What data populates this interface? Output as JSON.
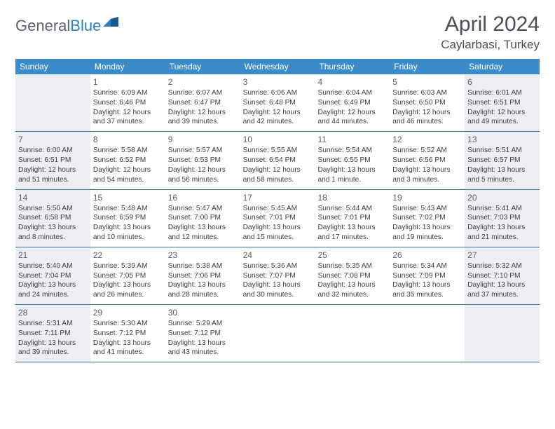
{
  "logo": {
    "part1": "General",
    "part2": "Blue"
  },
  "title": "April 2024",
  "location": "Caylarbasi, Turkey",
  "colors": {
    "header_bg": "#3b8bc9",
    "header_text": "#ffffff",
    "border": "#3b6fa0",
    "shaded": "#eceff1",
    "text": "#3a3f45",
    "title_text": "#4a5058",
    "logo_gray": "#5a6570",
    "logo_blue": "#2d7fc4"
  },
  "day_headers": [
    "Sunday",
    "Monday",
    "Tuesday",
    "Wednesday",
    "Thursday",
    "Friday",
    "Saturday"
  ],
  "weeks": [
    [
      {
        "shaded": true
      },
      {
        "n": "1",
        "sr": "Sunrise: 6:09 AM",
        "ss": "Sunset: 6:46 PM",
        "d1": "Daylight: 12 hours",
        "d2": "and 37 minutes."
      },
      {
        "n": "2",
        "sr": "Sunrise: 6:07 AM",
        "ss": "Sunset: 6:47 PM",
        "d1": "Daylight: 12 hours",
        "d2": "and 39 minutes."
      },
      {
        "n": "3",
        "sr": "Sunrise: 6:06 AM",
        "ss": "Sunset: 6:48 PM",
        "d1": "Daylight: 12 hours",
        "d2": "and 42 minutes."
      },
      {
        "n": "4",
        "sr": "Sunrise: 6:04 AM",
        "ss": "Sunset: 6:49 PM",
        "d1": "Daylight: 12 hours",
        "d2": "and 44 minutes."
      },
      {
        "n": "5",
        "sr": "Sunrise: 6:03 AM",
        "ss": "Sunset: 6:50 PM",
        "d1": "Daylight: 12 hours",
        "d2": "and 46 minutes."
      },
      {
        "n": "6",
        "sr": "Sunrise: 6:01 AM",
        "ss": "Sunset: 6:51 PM",
        "d1": "Daylight: 12 hours",
        "d2": "and 49 minutes.",
        "shaded": true
      }
    ],
    [
      {
        "n": "7",
        "sr": "Sunrise: 6:00 AM",
        "ss": "Sunset: 6:51 PM",
        "d1": "Daylight: 12 hours",
        "d2": "and 51 minutes.",
        "shaded": true
      },
      {
        "n": "8",
        "sr": "Sunrise: 5:58 AM",
        "ss": "Sunset: 6:52 PM",
        "d1": "Daylight: 12 hours",
        "d2": "and 54 minutes."
      },
      {
        "n": "9",
        "sr": "Sunrise: 5:57 AM",
        "ss": "Sunset: 6:53 PM",
        "d1": "Daylight: 12 hours",
        "d2": "and 56 minutes."
      },
      {
        "n": "10",
        "sr": "Sunrise: 5:55 AM",
        "ss": "Sunset: 6:54 PM",
        "d1": "Daylight: 12 hours",
        "d2": "and 58 minutes."
      },
      {
        "n": "11",
        "sr": "Sunrise: 5:54 AM",
        "ss": "Sunset: 6:55 PM",
        "d1": "Daylight: 13 hours",
        "d2": "and 1 minute."
      },
      {
        "n": "12",
        "sr": "Sunrise: 5:52 AM",
        "ss": "Sunset: 6:56 PM",
        "d1": "Daylight: 13 hours",
        "d2": "and 3 minutes."
      },
      {
        "n": "13",
        "sr": "Sunrise: 5:51 AM",
        "ss": "Sunset: 6:57 PM",
        "d1": "Daylight: 13 hours",
        "d2": "and 5 minutes.",
        "shaded": true
      }
    ],
    [
      {
        "n": "14",
        "sr": "Sunrise: 5:50 AM",
        "ss": "Sunset: 6:58 PM",
        "d1": "Daylight: 13 hours",
        "d2": "and 8 minutes.",
        "shaded": true
      },
      {
        "n": "15",
        "sr": "Sunrise: 5:48 AM",
        "ss": "Sunset: 6:59 PM",
        "d1": "Daylight: 13 hours",
        "d2": "and 10 minutes."
      },
      {
        "n": "16",
        "sr": "Sunrise: 5:47 AM",
        "ss": "Sunset: 7:00 PM",
        "d1": "Daylight: 13 hours",
        "d2": "and 12 minutes."
      },
      {
        "n": "17",
        "sr": "Sunrise: 5:45 AM",
        "ss": "Sunset: 7:01 PM",
        "d1": "Daylight: 13 hours",
        "d2": "and 15 minutes."
      },
      {
        "n": "18",
        "sr": "Sunrise: 5:44 AM",
        "ss": "Sunset: 7:01 PM",
        "d1": "Daylight: 13 hours",
        "d2": "and 17 minutes."
      },
      {
        "n": "19",
        "sr": "Sunrise: 5:43 AM",
        "ss": "Sunset: 7:02 PM",
        "d1": "Daylight: 13 hours",
        "d2": "and 19 minutes."
      },
      {
        "n": "20",
        "sr": "Sunrise: 5:41 AM",
        "ss": "Sunset: 7:03 PM",
        "d1": "Daylight: 13 hours",
        "d2": "and 21 minutes.",
        "shaded": true
      }
    ],
    [
      {
        "n": "21",
        "sr": "Sunrise: 5:40 AM",
        "ss": "Sunset: 7:04 PM",
        "d1": "Daylight: 13 hours",
        "d2": "and 24 minutes.",
        "shaded": true
      },
      {
        "n": "22",
        "sr": "Sunrise: 5:39 AM",
        "ss": "Sunset: 7:05 PM",
        "d1": "Daylight: 13 hours",
        "d2": "and 26 minutes."
      },
      {
        "n": "23",
        "sr": "Sunrise: 5:38 AM",
        "ss": "Sunset: 7:06 PM",
        "d1": "Daylight: 13 hours",
        "d2": "and 28 minutes."
      },
      {
        "n": "24",
        "sr": "Sunrise: 5:36 AM",
        "ss": "Sunset: 7:07 PM",
        "d1": "Daylight: 13 hours",
        "d2": "and 30 minutes."
      },
      {
        "n": "25",
        "sr": "Sunrise: 5:35 AM",
        "ss": "Sunset: 7:08 PM",
        "d1": "Daylight: 13 hours",
        "d2": "and 32 minutes."
      },
      {
        "n": "26",
        "sr": "Sunrise: 5:34 AM",
        "ss": "Sunset: 7:09 PM",
        "d1": "Daylight: 13 hours",
        "d2": "and 35 minutes."
      },
      {
        "n": "27",
        "sr": "Sunrise: 5:32 AM",
        "ss": "Sunset: 7:10 PM",
        "d1": "Daylight: 13 hours",
        "d2": "and 37 minutes.",
        "shaded": true
      }
    ],
    [
      {
        "n": "28",
        "sr": "Sunrise: 5:31 AM",
        "ss": "Sunset: 7:11 PM",
        "d1": "Daylight: 13 hours",
        "d2": "and 39 minutes.",
        "shaded": true
      },
      {
        "n": "29",
        "sr": "Sunrise: 5:30 AM",
        "ss": "Sunset: 7:12 PM",
        "d1": "Daylight: 13 hours",
        "d2": "and 41 minutes."
      },
      {
        "n": "30",
        "sr": "Sunrise: 5:29 AM",
        "ss": "Sunset: 7:12 PM",
        "d1": "Daylight: 13 hours",
        "d2": "and 43 minutes."
      },
      {
        "shaded": false
      },
      {
        "shaded": false
      },
      {
        "shaded": false
      },
      {
        "shaded": true
      }
    ]
  ]
}
